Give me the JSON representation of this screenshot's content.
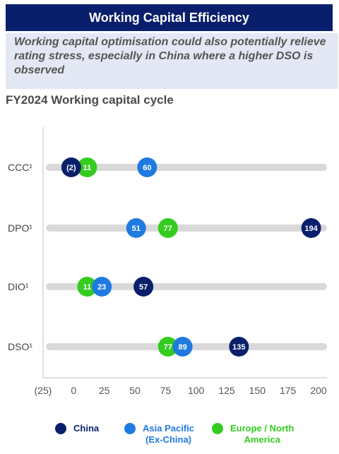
{
  "header": {
    "title": "Working Capital Efficiency",
    "subtitle": "Working capital optimisation could also potentially relieve rating stress, especially in China where a higher DSO is observed"
  },
  "chart_heading": "FY2024 Working capital cycle",
  "chart_data": {
    "type": "scatter",
    "title": "FY2024 Working capital cycle",
    "categories": [
      "CCC¹",
      "DPO¹",
      "DIO¹",
      "DSO¹"
    ],
    "xlim": [
      -25,
      200
    ],
    "x_ticks": [
      "(25)",
      "0",
      "25",
      "50",
      "75",
      "100",
      "125",
      "150",
      "175",
      "200"
    ],
    "series": [
      {
        "name": "China",
        "color": "#0a1f6b",
        "values": [
          -2,
          194,
          57,
          135
        ],
        "labels": [
          "(2)",
          "194",
          "57",
          "135"
        ]
      },
      {
        "name": "Asia Pacific (Ex-China)",
        "color": "#1f7ae0",
        "values": [
          60,
          51,
          23,
          89
        ],
        "labels": [
          "60",
          "51",
          "23",
          "89"
        ]
      },
      {
        "name": "Europe / North America",
        "color": "#33cc1f",
        "values": [
          11,
          77,
          11,
          77
        ],
        "labels": [
          "11",
          "77",
          "11",
          "77"
        ]
      }
    ]
  },
  "legend": {
    "china": "China",
    "apac_line1": "Asia Pacific",
    "apac_line2": "(Ex-China)",
    "europe_line1": "Europe / North",
    "europe_line2": "America"
  },
  "colors": {
    "navy": "#0a1f6b",
    "blue": "#1f7ae0",
    "green": "#33cc1f",
    "track": "#d9d9d9"
  }
}
